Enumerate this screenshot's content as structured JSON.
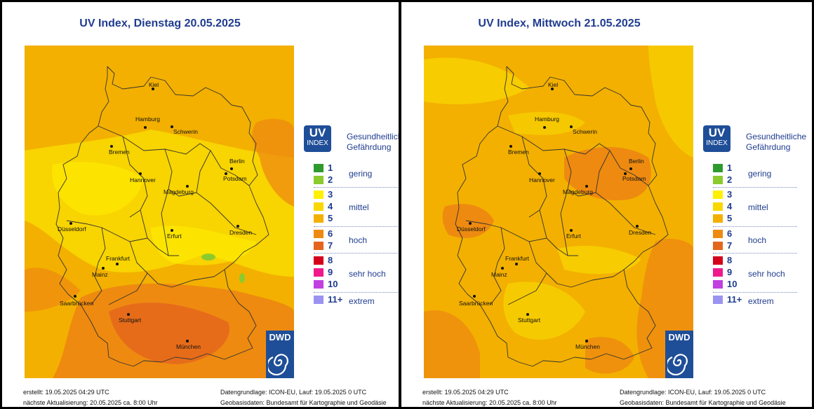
{
  "colors": {
    "uv1": "#2e9a2e",
    "uv2": "#8ccb2e",
    "uv3": "#fff000",
    "uv4": "#f8d800",
    "uv5": "#f3b000",
    "uv6": "#ee8a10",
    "uv7": "#e4661c",
    "uv8": "#d4001c",
    "uv9": "#f0198c",
    "uv10": "#c040e0",
    "uv11": "#9b93f0",
    "brand": "#1f4e98",
    "text_blue": "#1f3c8f"
  },
  "legend": {
    "badge_top": "UV",
    "badge_bottom": "INDEX",
    "heading_line1": "Gesundheitliche",
    "heading_line2": "Gefährdung",
    "levels": [
      {
        "value": "1",
        "color_key": "uv1"
      },
      {
        "value": "2",
        "color_key": "uv2"
      },
      {
        "value": "3",
        "color_key": "uv3"
      },
      {
        "value": "4",
        "color_key": "uv4"
      },
      {
        "value": "5",
        "color_key": "uv5"
      },
      {
        "value": "6",
        "color_key": "uv6"
      },
      {
        "value": "7",
        "color_key": "uv7"
      },
      {
        "value": "8",
        "color_key": "uv8"
      },
      {
        "value": "9",
        "color_key": "uv9"
      },
      {
        "value": "10",
        "color_key": "uv10"
      },
      {
        "value": "11+",
        "color_key": "uv11"
      }
    ],
    "categories": [
      "gering",
      "mittel",
      "hoch",
      "sehr hoch",
      "extrem"
    ]
  },
  "cities": [
    "Kiel",
    "Hamburg",
    "Schwerin",
    "Bremen",
    "Berlin",
    "Potsdam",
    "Hannover",
    "Magdeburg",
    "Düsseldorf",
    "Erfurt",
    "Dresden",
    "Frankfurt",
    "Mainz",
    "Saarbrücken",
    "Stuttgart",
    "München"
  ],
  "logo_text": "DWD",
  "panels": [
    {
      "title": "UV Index, Dienstag 20.05.2025",
      "footer": {
        "created": "erstellt: 19.05.2025 04:29 UTC",
        "next_update": "nächste Aktualisierung:  20.05.2025 ca. 8:00 Uhr",
        "data_basis": "Datengrundlage: ICON-EU, Lauf: 19.05.2025 0 UTC",
        "geo_basis": "Geobasisdaten: Bundesamt für Kartographie und Geodäsie"
      }
    },
    {
      "title": "UV Index, Mittwoch 21.05.2025",
      "footer": {
        "created": "erstellt: 19.05.2025 04:29 UTC",
        "next_update": "nächste Aktualisierung:  20.05.2025 ca. 8:00 Uhr",
        "data_basis": "Datengrundlage: ICON-EU, Lauf: 19.05.2025 0 UTC",
        "geo_basis": "Geobasisdaten: Bundesamt für Kartographie und Geodäsie"
      }
    }
  ]
}
